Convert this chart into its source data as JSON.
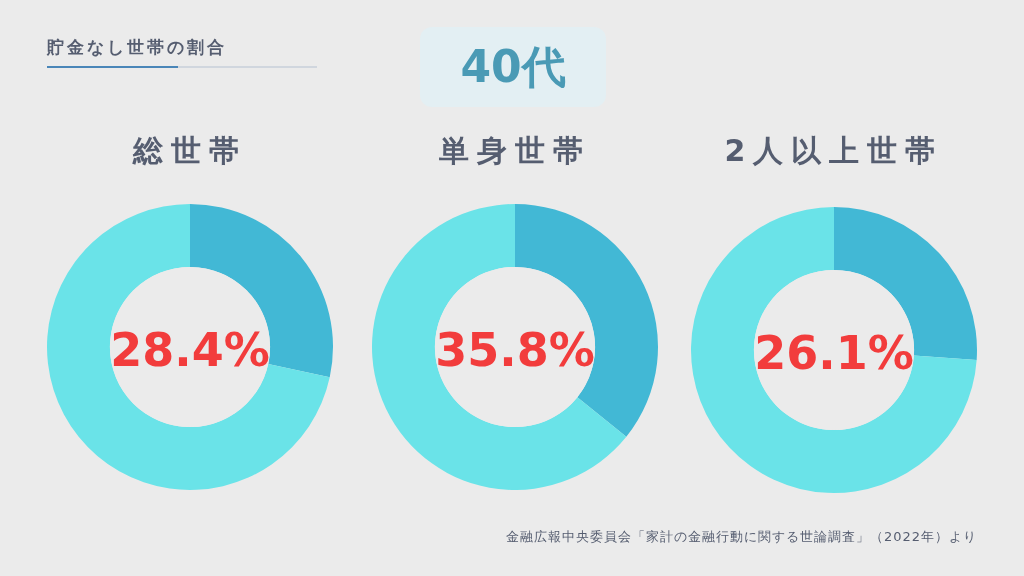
{
  "chart_data": [
    {
      "type": "other",
      "title": "貯金なし世帯の割合",
      "subtitle": "40代",
      "annotations": [
        "金融広報中央委員会「家計の金融行動に関する世論調査」（2022年）より"
      ]
    },
    {
      "type": "donut",
      "title": "総世帯",
      "categories": [
        null,
        null
      ],
      "values": [
        28.4,
        71.6
      ],
      "colors": [
        "#42b8d5",
        "#6ae3e8"
      ],
      "annotations": [
        "28.4%"
      ]
    },
    {
      "type": "donut",
      "title": "単身世帯",
      "categories": [
        null,
        null
      ],
      "values": [
        35.8,
        64.2
      ],
      "colors": [
        "#42b8d5",
        "#6ae3e8"
      ],
      "annotations": [
        "35.8%"
      ]
    },
    {
      "type": "donut",
      "title": "2人以上世帯",
      "categories": [
        null,
        null
      ],
      "values": [
        26.1,
        73.9
      ],
      "colors": [
        "#42b8d5",
        "#6ae3e8"
      ],
      "annotations": [
        "26.1%"
      ]
    }
  ]
}
